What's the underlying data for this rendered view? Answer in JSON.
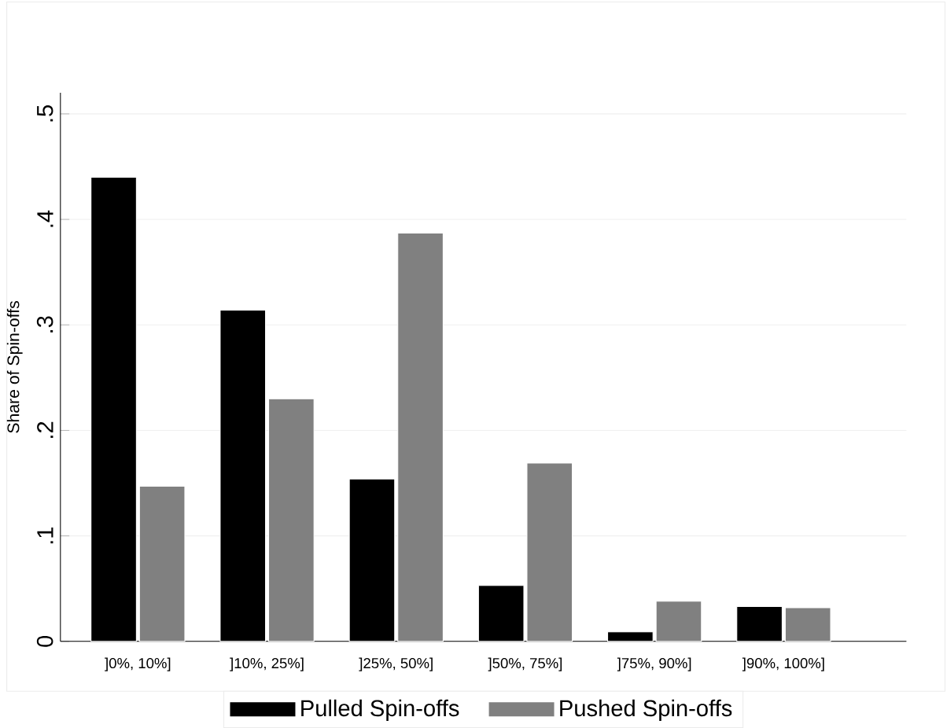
{
  "chart_data": {
    "type": "bar",
    "ylabel": "Share of Spin-offs",
    "categories": [
      "]0%, 10%]",
      "]10%, 25%]",
      "]25%, 50%]",
      "]50%, 75%]",
      "]75%, 90%]",
      "]90%, 100%]"
    ],
    "series": [
      {
        "name": "Pulled Spin-offs",
        "color": "#000000",
        "values": [
          0.44,
          0.314,
          0.154,
          0.053,
          0.009,
          0.033
        ]
      },
      {
        "name": "Pushed Spin-offs",
        "color": "#808080",
        "values": [
          0.147,
          0.23,
          0.387,
          0.169,
          0.038,
          0.032
        ]
      }
    ],
    "ylim": [
      0,
      0.52
    ],
    "yticks": [
      {
        "value": 0,
        "label": "0"
      },
      {
        "value": 0.1,
        "label": ".1"
      },
      {
        "value": 0.2,
        "label": ".2"
      },
      {
        "value": 0.3,
        "label": ".3"
      },
      {
        "value": 0.4,
        "label": ".4"
      },
      {
        "value": 0.5,
        "label": ".5"
      }
    ],
    "grid": "y",
    "legend": "bottom"
  }
}
